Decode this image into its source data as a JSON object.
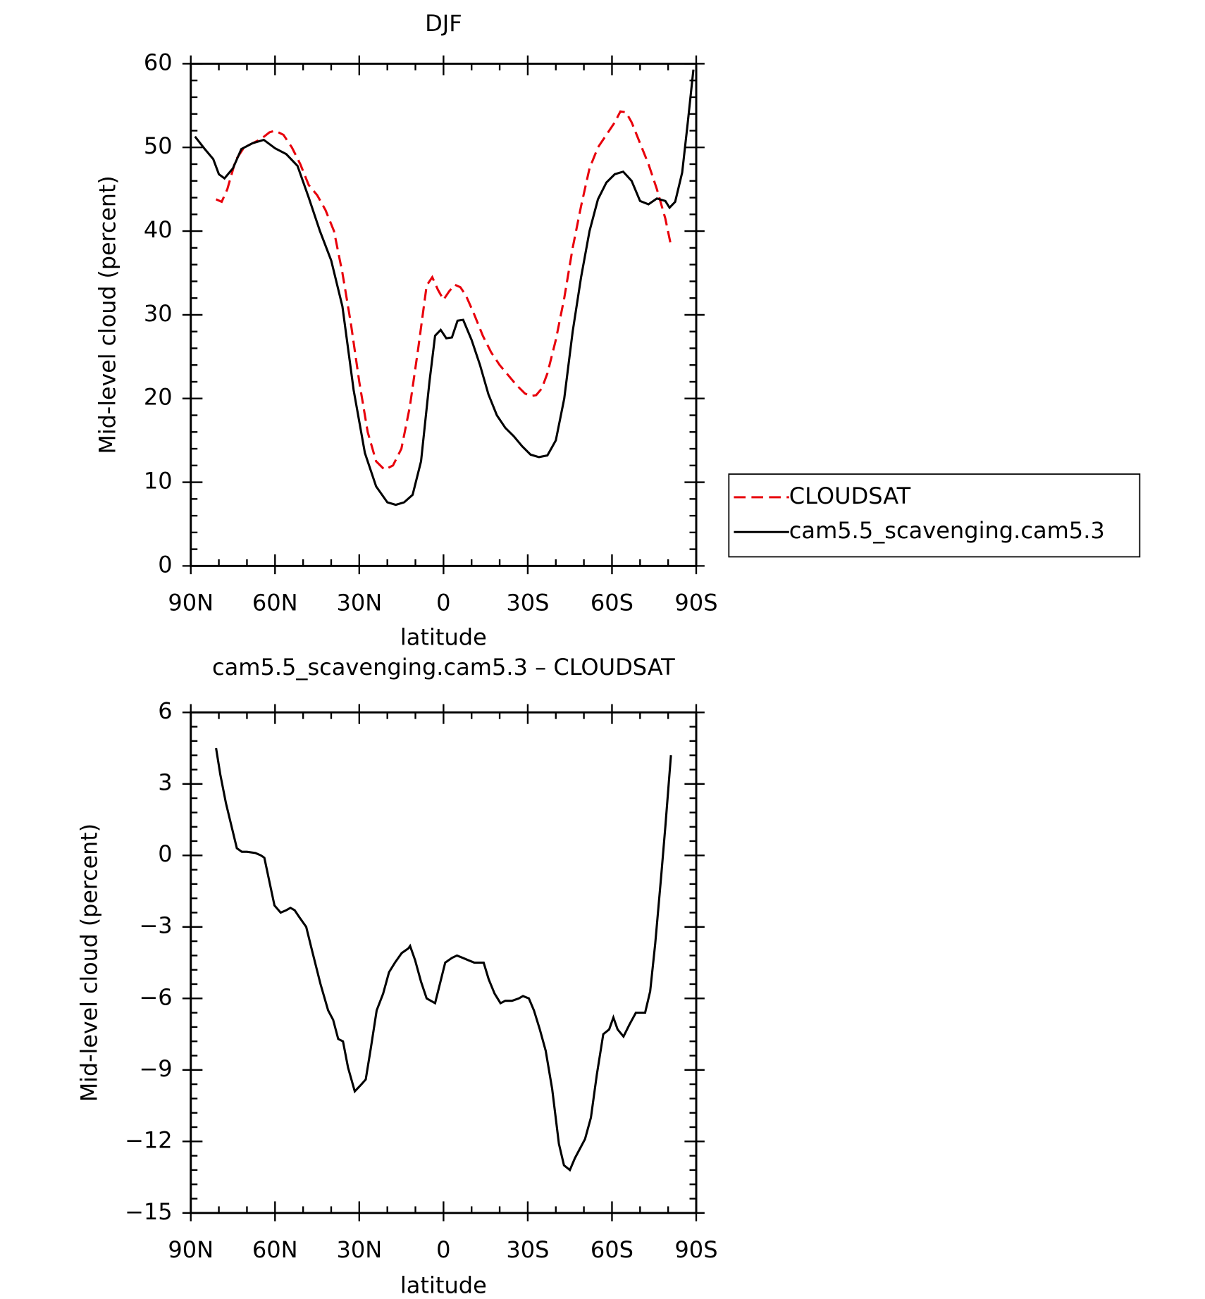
{
  "chart_data": [
    {
      "type": "line",
      "title": "DJF",
      "xlabel": "latitude",
      "ylabel": "Mid-level cloud (percent)",
      "xlim": [
        90,
        -90
      ],
      "xticks": [
        {
          "value": 90,
          "label": "90N"
        },
        {
          "value": 60,
          "label": "60N"
        },
        {
          "value": 30,
          "label": "30N"
        },
        0,
        {
          "value": -30,
          "label": "30S"
        },
        {
          "value": -60,
          "label": "60S"
        },
        {
          "value": -90,
          "label": "90S"
        }
      ],
      "ylim": [
        0,
        60
      ],
      "yticks": [
        0,
        10,
        20,
        30,
        40,
        50,
        60
      ],
      "legend": "right",
      "series": [
        {
          "name": "CLOUDSAT",
          "color": "#e8000b",
          "dashed": true,
          "x": [
            81,
            79,
            77,
            74,
            71,
            68,
            65,
            62,
            60,
            57,
            54,
            51,
            48,
            45,
            42,
            39,
            36,
            33,
            30,
            27,
            24,
            21,
            18,
            15,
            12,
            9,
            6,
            4,
            2,
            0,
            -2,
            -4,
            -6,
            -8,
            -11,
            -14,
            -17,
            -20,
            -23,
            -26,
            -29,
            -31,
            -33,
            -35,
            -37,
            -40,
            -43,
            -46,
            -49,
            -52,
            -55,
            -58,
            -61,
            -63,
            -65,
            -67,
            -70,
            -73,
            -76,
            -79,
            -81
          ],
          "values": [
            43.8,
            43.5,
            45,
            48.5,
            50,
            50.5,
            51,
            51.8,
            52,
            51.5,
            50,
            48,
            45.5,
            44.3,
            42.5,
            40,
            35,
            29,
            22,
            16,
            12.5,
            11.5,
            12,
            14,
            19,
            26,
            33.5,
            34.5,
            33,
            31.8,
            32.8,
            33.6,
            33.3,
            32.3,
            30,
            27.5,
            25.5,
            24,
            22.8,
            21.6,
            20.6,
            20.3,
            20.4,
            21.2,
            23,
            27,
            32,
            38,
            43,
            47.5,
            50,
            51.5,
            53,
            54.3,
            54.2,
            53,
            50.5,
            48,
            45,
            41.5,
            38.3
          ]
        },
        {
          "name": "cam5.5_scavenging.cam5.3",
          "color": "#000000",
          "dashed": false,
          "x": [
            88.5,
            85,
            82,
            80,
            78,
            75,
            72,
            68,
            64,
            60,
            56,
            52,
            48,
            44,
            40,
            36,
            32,
            28,
            24,
            20,
            17,
            14,
            11,
            8,
            5,
            3,
            1,
            -1,
            -3,
            -5,
            -7,
            -10,
            -13,
            -16,
            -19,
            -22,
            -25,
            -28,
            -31,
            -34,
            -37,
            -40,
            -43,
            -46,
            -49,
            -52,
            -55,
            -58,
            -61,
            -64,
            -67,
            -70,
            -73,
            -76,
            -79,
            -80.5,
            -82.5,
            -85,
            -87,
            -89
          ],
          "values": [
            51.3,
            49.8,
            48.6,
            46.8,
            46.3,
            47.5,
            49.8,
            50.5,
            50.9,
            49.9,
            49.2,
            47.8,
            44,
            40,
            36.5,
            31,
            21,
            13.5,
            9.5,
            7.6,
            7.3,
            7.6,
            8.5,
            12.5,
            22,
            27.5,
            28.2,
            27.2,
            27.3,
            29.3,
            29.4,
            27,
            24,
            20.5,
            18,
            16.5,
            15.5,
            14.3,
            13.3,
            13,
            13.2,
            15,
            20,
            28,
            34.5,
            40,
            43.8,
            45.8,
            46.8,
            47.1,
            46,
            43.6,
            43.2,
            43.9,
            43.6,
            42.8,
            43.5,
            47,
            53,
            59.3
          ]
        }
      ]
    },
    {
      "type": "line",
      "title": "cam5.5_scavenging.cam5.3 – CLOUDSAT",
      "xlabel": "latitude",
      "ylabel": "Mid-level cloud (percent)",
      "xlim": [
        90,
        -90
      ],
      "xticks": [
        {
          "value": 90,
          "label": "90N"
        },
        {
          "value": 60,
          "label": "60N"
        },
        {
          "value": 30,
          "label": "30N"
        },
        0,
        {
          "value": -30,
          "label": "30S"
        },
        {
          "value": -60,
          "label": "60S"
        },
        {
          "value": -90,
          "label": "90S"
        }
      ],
      "ylim": [
        -15,
        6
      ],
      "yticks": [
        {
          "value": -15,
          "label": "−15"
        },
        {
          "value": -12,
          "label": "−12"
        },
        {
          "value": -9,
          "label": "−9"
        },
        {
          "value": -6,
          "label": "−6"
        },
        {
          "value": -3,
          "label": "−3"
        },
        0,
        3,
        6
      ],
      "series": [
        {
          "color": "#000000",
          "dashed": false,
          "x": [
            81,
            79.5,
            77.5,
            73.6,
            71.8,
            70,
            67,
            65,
            63.8,
            62,
            60.2,
            58,
            56,
            54.5,
            53,
            51.3,
            48.9,
            46.8,
            43.8,
            41.1,
            39.3,
            37.5,
            35.8,
            34,
            31.6,
            29.2,
            27.7,
            25.9,
            23.8,
            21.5,
            19.4,
            17.3,
            14.9,
            12.5,
            11.9,
            10.1,
            8,
            6,
            3,
            -0.6,
            -3,
            -4.8,
            -6.9,
            -8.9,
            -11,
            -14.3,
            -16.1,
            -18.2,
            -20.3,
            -22,
            -24.4,
            -26.8,
            -28.3,
            -30.4,
            -32.2,
            -34.3,
            -36.4,
            -38.7,
            -41.1,
            -42.9,
            -45,
            -46.8,
            -48.6,
            -50.4,
            -52.5,
            -54.6,
            -56.9,
            -59,
            -60.5,
            -62,
            -64.1,
            -66.2,
            -68.5,
            -70.3,
            -71.8,
            -73.6,
            -75.4,
            -77.5,
            -79,
            -81
          ],
          "values": [
            4.5,
            3.4,
            2.2,
            0.3,
            0.15,
            0.15,
            0.1,
            0,
            -0.1,
            -1.1,
            -2.1,
            -2.4,
            -2.3,
            -2.2,
            -2.3,
            -2.6,
            -3,
            -4,
            -5.4,
            -6.5,
            -6.9,
            -7.7,
            -7.8,
            -8.9,
            -9.9,
            -9.6,
            -9.4,
            -8.1,
            -6.5,
            -5.8,
            -4.9,
            -4.5,
            -4.1,
            -3.9,
            -3.8,
            -4.4,
            -5.3,
            -6,
            -6.2,
            -4.5,
            -4.3,
            -4.2,
            -4.3,
            -4.4,
            -4.5,
            -4.5,
            -5.2,
            -5.8,
            -6.2,
            -6.1,
            -6.1,
            -6,
            -5.9,
            -6,
            -6.5,
            -7.3,
            -8.2,
            -9.8,
            -12.1,
            -13,
            -13.2,
            -12.7,
            -12.3,
            -11.9,
            -11,
            -9.2,
            -7.5,
            -7.3,
            -6.8,
            -7.3,
            -7.6,
            -7.1,
            -6.6,
            -6.6,
            -6.6,
            -5.7,
            -3.7,
            -0.9,
            1.2,
            4.2
          ]
        }
      ]
    }
  ]
}
